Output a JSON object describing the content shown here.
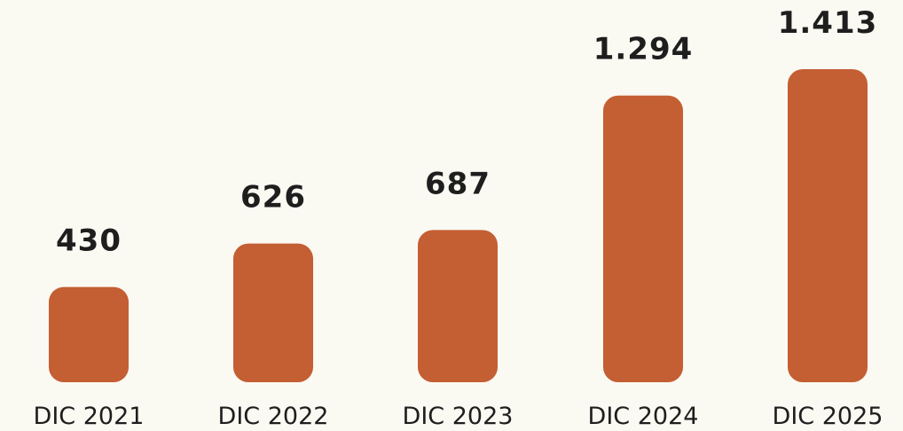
{
  "chart_data": {
    "type": "bar",
    "categories": [
      "DIC 2021",
      "DIC 2022",
      "DIC 2023",
      "DIC 2024",
      "DIC 2025"
    ],
    "values": [
      430,
      626,
      687,
      1294,
      1413
    ],
    "value_labels": [
      "430",
      "626",
      "687",
      "1.294",
      "1.413"
    ],
    "title": "",
    "xlabel": "",
    "ylabel": "",
    "ylim": [
      0,
      1413
    ],
    "grid": false,
    "legend": "none",
    "bar_color": "#c45e33",
    "text_color": "#1e1e1e",
    "background_color": "#faf9f2"
  }
}
